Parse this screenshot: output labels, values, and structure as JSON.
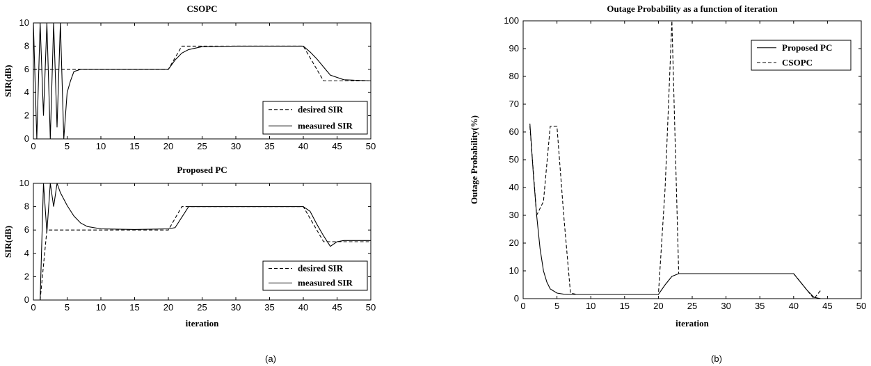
{
  "chart_data": [
    {
      "type": "line",
      "panel": "a-top",
      "title": "CSOPC",
      "xlabel": "",
      "ylabel": "SIR(dB)",
      "xlim": [
        0,
        50
      ],
      "ylim": [
        0,
        10
      ],
      "xticks": [
        "0",
        "5",
        "10",
        "15",
        "20",
        "25",
        "30",
        "35",
        "40",
        "45",
        "50"
      ],
      "yticks": [
        "0",
        "2",
        "4",
        "6",
        "8",
        "10"
      ],
      "legend": {
        "placement": "lower-right",
        "entries": [
          "desired SIR",
          "measured SIR"
        ]
      },
      "series": [
        {
          "name": "desired SIR",
          "style": "dashed",
          "x": [
            0,
            20,
            22,
            40,
            43,
            50
          ],
          "y": [
            6,
            6,
            8,
            8,
            5,
            5
          ]
        },
        {
          "name": "measured SIR",
          "style": "solid",
          "x": [
            0,
            0.5,
            1,
            1.5,
            2,
            2.5,
            3,
            3.5,
            4,
            4.5,
            5,
            5.5,
            6,
            7,
            8,
            10,
            20,
            21,
            22,
            23,
            25,
            30,
            40,
            41,
            42,
            43,
            44,
            46,
            50
          ],
          "y": [
            10,
            0,
            10,
            2,
            10,
            0,
            10,
            1,
            10,
            0,
            4,
            5,
            5.8,
            6,
            6,
            6,
            6,
            6.8,
            7.4,
            7.7,
            7.95,
            8,
            8,
            7.5,
            6.9,
            6.2,
            5.5,
            5.1,
            5
          ]
        }
      ]
    },
    {
      "type": "line",
      "panel": "a-bottom",
      "title": "Proposed PC",
      "xlabel": "iteration",
      "ylabel": "SIR(dB)",
      "xlim": [
        0,
        50
      ],
      "ylim": [
        0,
        10
      ],
      "xticks": [
        "0",
        "5",
        "10",
        "15",
        "20",
        "25",
        "30",
        "35",
        "40",
        "45",
        "50"
      ],
      "yticks": [
        "0",
        "2",
        "4",
        "6",
        "8",
        "10"
      ],
      "legend": {
        "placement": "lower-right",
        "entries": [
          "desired SIR",
          "measured SIR"
        ]
      },
      "series": [
        {
          "name": "desired SIR",
          "style": "dashed",
          "x": [
            1,
            2,
            20,
            22,
            40,
            43,
            50
          ],
          "y": [
            0,
            6,
            6,
            8,
            8,
            5,
            5
          ]
        },
        {
          "name": "measured SIR",
          "style": "solid",
          "x": [
            1,
            1.5,
            2,
            2.5,
            3,
            3.5,
            4,
            5,
            6,
            7,
            8,
            10,
            15,
            20,
            21,
            23,
            25,
            30,
            40,
            41,
            42,
            43,
            44,
            45,
            46,
            50
          ],
          "y": [
            0,
            10,
            5.8,
            10,
            8,
            10,
            9.2,
            8.1,
            7.2,
            6.6,
            6.3,
            6.1,
            6.05,
            6.1,
            6.2,
            8,
            8,
            8,
            8,
            7.6,
            6.5,
            5.5,
            4.6,
            5,
            5.1,
            5.1
          ]
        }
      ]
    },
    {
      "type": "line",
      "panel": "b",
      "title": "Outage Probability as a function of iteration",
      "xlabel": "iteration",
      "ylabel": "Outage Probability(%)",
      "xlim": [
        0,
        50
      ],
      "ylim": [
        0,
        100
      ],
      "xticks": [
        "0",
        "5",
        "10",
        "15",
        "20",
        "25",
        "30",
        "35",
        "40",
        "45",
        "50"
      ],
      "yticks": [
        "0",
        "10",
        "20",
        "30",
        "40",
        "50",
        "60",
        "70",
        "80",
        "90",
        "100"
      ],
      "legend": {
        "placement": "top-right",
        "entries": [
          "Proposed PC",
          "CSOPC"
        ]
      },
      "series": [
        {
          "name": "Proposed PC",
          "style": "solid",
          "x": [
            1,
            1.5,
            2,
            2.5,
            3,
            3.5,
            4,
            5,
            6,
            8,
            10,
            15,
            20,
            21,
            22,
            23,
            25,
            30,
            40,
            41,
            42,
            43,
            44
          ],
          "y": [
            63,
            45,
            30,
            18,
            10,
            6,
            3.5,
            2,
            1.6,
            1.5,
            1.5,
            1.5,
            1.5,
            5,
            8,
            9,
            9,
            9,
            9,
            6,
            3,
            0.5,
            0
          ]
        },
        {
          "name": "CSOPC",
          "style": "dashed",
          "x": [
            1,
            2,
            3,
            4,
            5,
            6,
            7,
            8,
            10,
            20,
            21,
            22,
            23,
            25,
            30,
            40,
            41,
            42,
            43,
            44
          ],
          "y": [
            62,
            30,
            35,
            62,
            62,
            30,
            2,
            1.5,
            1.5,
            1.5,
            40,
            100,
            9,
            9,
            9,
            9,
            6,
            3,
            0,
            3
          ]
        }
      ]
    }
  ],
  "captions": {
    "left": "(a)",
    "right": "(b)"
  }
}
